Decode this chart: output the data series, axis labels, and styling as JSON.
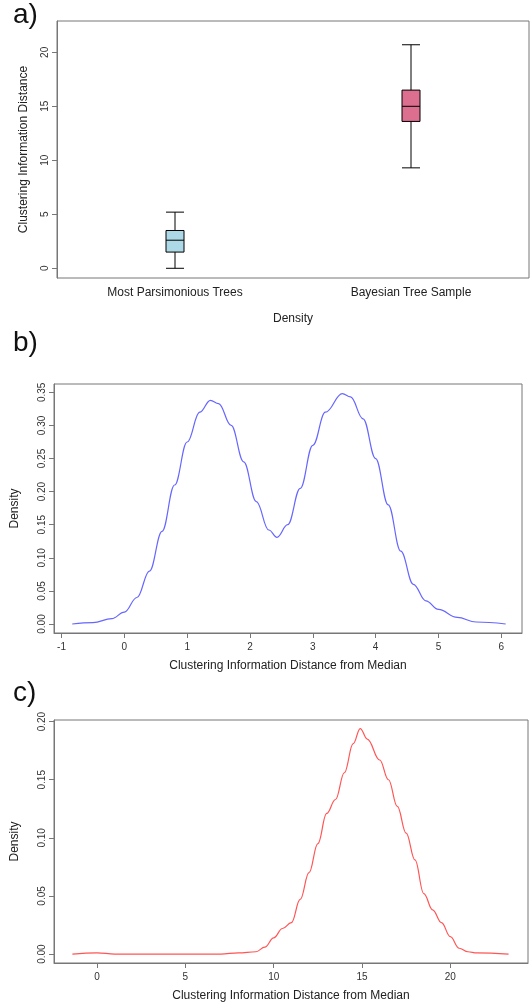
{
  "chart_data": [
    {
      "type": "box",
      "title": "a)",
      "xlabel": "Density",
      "ylabel": "Clustering Information Distance",
      "categories": [
        "Most Parsimonious Trees",
        "Bayesian Tree Sample"
      ],
      "colors": [
        "#add8e6",
        "#dc6e8f"
      ],
      "boxes": [
        {
          "low": 0,
          "q1": 1.5,
          "median": 2.6,
          "q3": 3.5,
          "high": 5.2
        },
        {
          "low": 9.3,
          "q1": 13.6,
          "median": 15,
          "q3": 16.5,
          "high": 20.7
        }
      ],
      "ylim": [
        -0.9,
        22.9
      ],
      "yticks": [
        0,
        5,
        10,
        15,
        20
      ],
      "grid": false
    },
    {
      "type": "line",
      "title": "b)",
      "xlabel": "Clustering Information Distance from Median",
      "ylabel": "Density",
      "series": [
        {
          "color": "#6666ff",
          "x": [
            -0.83,
            -0.5,
            -0.2,
            0,
            0.2,
            0.4,
            0.6,
            0.8,
            1.0,
            1.2,
            1.37,
            1.5,
            1.7,
            1.9,
            2.1,
            2.3,
            2.43,
            2.6,
            2.8,
            3.0,
            3.2,
            3.47,
            3.6,
            3.8,
            4.0,
            4.2,
            4.4,
            4.6,
            4.8,
            5.0,
            5.3,
            5.6,
            6.07
          ],
          "values": [
            0,
            0.002,
            0.008,
            0.018,
            0.04,
            0.08,
            0.14,
            0.21,
            0.275,
            0.32,
            0.338,
            0.333,
            0.3,
            0.245,
            0.185,
            0.142,
            0.131,
            0.15,
            0.205,
            0.27,
            0.32,
            0.348,
            0.343,
            0.31,
            0.25,
            0.18,
            0.11,
            0.06,
            0.035,
            0.022,
            0.01,
            0.003,
            0
          ]
        }
      ],
      "xlim": [
        -1.12,
        6.33
      ],
      "xticks": [
        -1,
        0,
        1,
        2,
        3,
        4,
        5,
        6
      ],
      "ylim": [
        -0.0136,
        0.3626
      ],
      "yticks": [
        {
          "value": 0,
          "label": "0.00"
        },
        {
          "value": 0.05,
          "label": "0.05"
        },
        {
          "value": 0.1,
          "label": "0.10"
        },
        {
          "value": 0.15,
          "label": "0.15"
        },
        {
          "value": 0.2,
          "label": "0.20"
        },
        {
          "value": 0.25,
          "label": "0.25"
        },
        {
          "value": 0.3,
          "label": "0.30"
        },
        {
          "value": 0.35,
          "label": "0.35"
        }
      ],
      "grid": false,
      "marker": "none",
      "line_style": "solid"
    },
    {
      "type": "line",
      "title": "c)",
      "xlabel": "Clustering Information Distance from Median",
      "ylabel": "Density",
      "series": [
        {
          "color": "#ff5555",
          "x": [
            -1.4,
            0,
            1,
            7,
            8,
            9,
            9.5,
            10,
            10.5,
            11,
            11.5,
            12,
            12.5,
            13,
            13.5,
            14,
            14.5,
            14.9,
            15.3,
            16,
            16.5,
            17,
            17.5,
            18,
            18.5,
            19,
            19.5,
            20,
            20.5,
            21,
            21.5,
            23.3
          ],
          "values": [
            0,
            0.001,
            0,
            0,
            0.001,
            0.002,
            0.006,
            0.014,
            0.022,
            0.027,
            0.047,
            0.07,
            0.095,
            0.121,
            0.133,
            0.156,
            0.181,
            0.194,
            0.185,
            0.167,
            0.15,
            0.127,
            0.104,
            0.081,
            0.052,
            0.038,
            0.027,
            0.015,
            0.005,
            0.002,
            0.001,
            0
          ]
        }
      ],
      "xlim": [
        -2.44,
        24.4
      ],
      "xticks": [
        0,
        5,
        10,
        15,
        20
      ],
      "ylim": [
        -0.0077,
        0.2014
      ],
      "yticks": [
        {
          "value": 0,
          "label": "0.00"
        },
        {
          "value": 0.05,
          "label": "0.05"
        },
        {
          "value": 0.1,
          "label": "0.10"
        },
        {
          "value": 0.15,
          "label": "0.15"
        },
        {
          "value": 0.2,
          "label": "0.20"
        }
      ],
      "grid": false,
      "marker": "none",
      "line_style": "solid"
    }
  ]
}
